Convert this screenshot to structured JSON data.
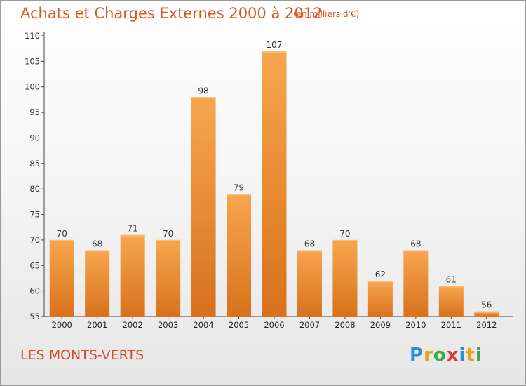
{
  "header": {
    "title": "Achats et Charges Externes 2000 à 2012",
    "subtitle": "(en milliers d'€)"
  },
  "footer": {
    "commune": "LES MONTS-VERTS",
    "brand": "Proxiti",
    "brand_colors": [
      "#2a8fd6",
      "#e8a21b",
      "#3aa84a",
      "#d83a2a",
      "#2a8fd6",
      "#e8a21b",
      "#3aa84a"
    ]
  },
  "chart_data": {
    "type": "bar",
    "title": "Achats et Charges Externes 2000 à 2012",
    "subtitle": "(en milliers d'€)",
    "categories": [
      "2000",
      "2001",
      "2002",
      "2003",
      "2004",
      "2005",
      "2006",
      "2007",
      "2008",
      "2009",
      "2010",
      "2011",
      "2012"
    ],
    "values": [
      70,
      68,
      71,
      70,
      98,
      79,
      107,
      68,
      70,
      62,
      68,
      61,
      56
    ],
    "ylim": [
      55,
      110
    ],
    "yticks": [
      55,
      60,
      65,
      70,
      75,
      80,
      85,
      90,
      95,
      100,
      105,
      110
    ],
    "grid": false,
    "bar_color": "#f0892a",
    "label_color": "#333333",
    "axis_color": "#444444"
  }
}
